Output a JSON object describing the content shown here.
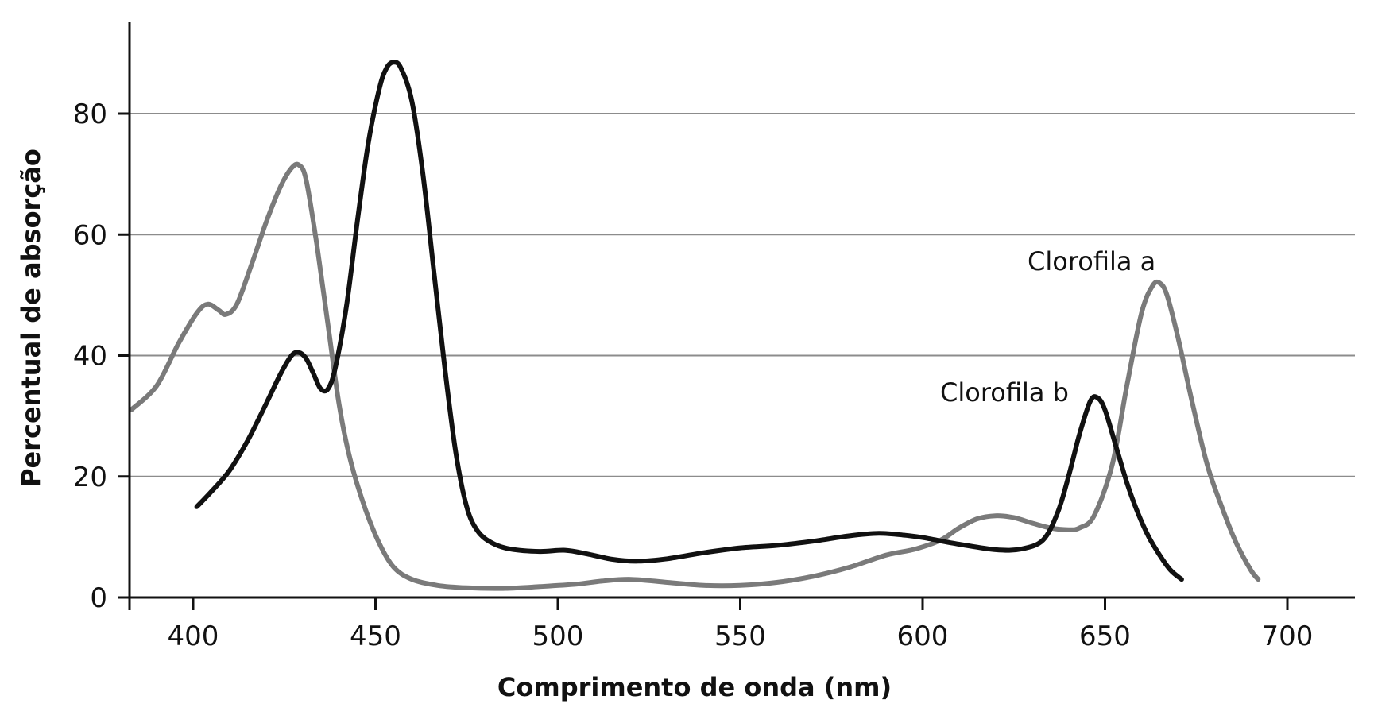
{
  "chart_data": {
    "type": "line",
    "title": "",
    "xlabel": "Comprimento de onda (nm)",
    "ylabel": "Percentual de absorção",
    "xlim": [
      383,
      718
    ],
    "ylim": [
      0,
      95
    ],
    "xticks": [
      400,
      450,
      500,
      550,
      600,
      650,
      700
    ],
    "yticks": [
      0,
      20,
      40,
      60,
      80
    ],
    "grid": "horizontal",
    "colors": {
      "clorofila_a": "#7a7a7a",
      "clorofila_b": "#111111",
      "grid": "#8c8c8c",
      "axis": "#111111"
    },
    "series": [
      {
        "name": "Clorofila a",
        "points": [
          [
            383,
            31
          ],
          [
            390,
            35
          ],
          [
            396,
            42
          ],
          [
            401,
            47
          ],
          [
            404,
            48.5
          ],
          [
            407,
            47.5
          ],
          [
            409,
            46.8
          ],
          [
            412,
            48.5
          ],
          [
            416,
            55
          ],
          [
            420,
            62
          ],
          [
            424,
            68
          ],
          [
            427,
            71
          ],
          [
            429,
            71.5
          ],
          [
            431,
            69
          ],
          [
            434,
            58
          ],
          [
            437,
            45
          ],
          [
            440,
            32
          ],
          [
            443,
            23
          ],
          [
            447,
            15
          ],
          [
            451,
            9
          ],
          [
            455,
            5
          ],
          [
            460,
            3
          ],
          [
            467,
            2
          ],
          [
            475,
            1.6
          ],
          [
            485,
            1.5
          ],
          [
            495,
            1.8
          ],
          [
            505,
            2.2
          ],
          [
            512,
            2.7
          ],
          [
            520,
            3
          ],
          [
            530,
            2.5
          ],
          [
            540,
            2
          ],
          [
            550,
            2
          ],
          [
            560,
            2.5
          ],
          [
            570,
            3.5
          ],
          [
            580,
            5
          ],
          [
            590,
            7
          ],
          [
            598,
            8
          ],
          [
            605,
            9.5
          ],
          [
            610,
            11.5
          ],
          [
            615,
            13
          ],
          [
            620,
            13.5
          ],
          [
            625,
            13.2
          ],
          [
            630,
            12.3
          ],
          [
            635,
            11.5
          ],
          [
            640,
            11.2
          ],
          [
            643,
            11.5
          ],
          [
            647,
            13.5
          ],
          [
            652,
            22
          ],
          [
            656,
            35
          ],
          [
            660,
            47
          ],
          [
            663,
            51.5
          ],
          [
            665,
            52
          ],
          [
            667,
            50
          ],
          [
            670,
            43
          ],
          [
            674,
            32
          ],
          [
            678,
            22
          ],
          [
            682,
            15
          ],
          [
            686,
            9
          ],
          [
            690,
            4.5
          ],
          [
            692,
            3
          ]
        ]
      },
      {
        "name": "Clorofila b",
        "points": [
          [
            401,
            15
          ],
          [
            405,
            17.5
          ],
          [
            410,
            21
          ],
          [
            415,
            26
          ],
          [
            420,
            32
          ],
          [
            424,
            37
          ],
          [
            427,
            40
          ],
          [
            429,
            40.5
          ],
          [
            431,
            39.5
          ],
          [
            433,
            37
          ],
          [
            435,
            34.5
          ],
          [
            437,
            34.5
          ],
          [
            439,
            38
          ],
          [
            442,
            48
          ],
          [
            445,
            62
          ],
          [
            448,
            75
          ],
          [
            451,
            84
          ],
          [
            453,
            87.5
          ],
          [
            455,
            88.5
          ],
          [
            457,
            87.5
          ],
          [
            460,
            82
          ],
          [
            463,
            70
          ],
          [
            466,
            54
          ],
          [
            469,
            38
          ],
          [
            472,
            24
          ],
          [
            475,
            15
          ],
          [
            478,
            11
          ],
          [
            482,
            9
          ],
          [
            487,
            8
          ],
          [
            495,
            7.6
          ],
          [
            502,
            7.8
          ],
          [
            508,
            7.2
          ],
          [
            515,
            6.3
          ],
          [
            522,
            6
          ],
          [
            530,
            6.4
          ],
          [
            540,
            7.4
          ],
          [
            550,
            8.2
          ],
          [
            560,
            8.6
          ],
          [
            570,
            9.3
          ],
          [
            580,
            10.2
          ],
          [
            588,
            10.6
          ],
          [
            595,
            10.3
          ],
          [
            600,
            9.9
          ],
          [
            610,
            8.8
          ],
          [
            620,
            7.9
          ],
          [
            627,
            8
          ],
          [
            633,
            9.5
          ],
          [
            637,
            14
          ],
          [
            640,
            20
          ],
          [
            643,
            27
          ],
          [
            646,
            32.5
          ],
          [
            648,
            33
          ],
          [
            650,
            31
          ],
          [
            653,
            25
          ],
          [
            656,
            19
          ],
          [
            659,
            14
          ],
          [
            662,
            10
          ],
          [
            665,
            7
          ],
          [
            668,
            4.5
          ],
          [
            671,
            3
          ]
        ]
      }
    ],
    "annotations": [
      {
        "text": "Clorofila a",
        "series": "Clorofila a"
      },
      {
        "text": "Clorofila b",
        "series": "Clorofila b"
      }
    ]
  }
}
